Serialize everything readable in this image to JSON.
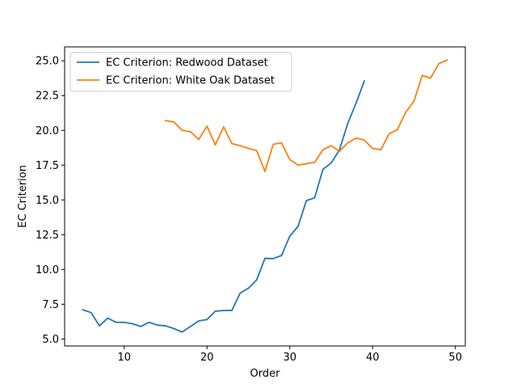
{
  "chart_data": {
    "type": "line",
    "title": "",
    "xlabel": "Order",
    "ylabel": "EC Criterion",
    "xlim": [
      2.8,
      51.2
    ],
    "ylim": [
      4.5,
      26.0
    ],
    "xticks": [
      10,
      20,
      30,
      40,
      50
    ],
    "yticks": [
      5.0,
      7.5,
      10.0,
      12.5,
      15.0,
      17.5,
      20.0,
      22.5,
      25.0
    ],
    "grid": false,
    "legend_position": "upper-left",
    "series": [
      {
        "name": "EC Criterion: Redwood Dataset",
        "color": "#1f77b4",
        "x": [
          5,
          6,
          7,
          8,
          9,
          10,
          11,
          12,
          13,
          14,
          15,
          16,
          17,
          18,
          19,
          20,
          21,
          22,
          23,
          24,
          25,
          26,
          27,
          28,
          29,
          30,
          31,
          32,
          33,
          34,
          35,
          36,
          37,
          38,
          39
        ],
        "y": [
          7.1,
          6.9,
          5.95,
          6.5,
          6.2,
          6.2,
          6.1,
          5.9,
          6.2,
          6.0,
          5.95,
          5.75,
          5.5,
          5.9,
          6.3,
          6.4,
          7.0,
          7.05,
          7.05,
          8.3,
          8.65,
          9.25,
          10.8,
          10.78,
          11.0,
          12.4,
          13.1,
          14.95,
          15.15,
          17.2,
          17.65,
          18.6,
          20.5,
          21.95,
          23.55
        ]
      },
      {
        "name": "EC Criterion: White Oak Dataset",
        "color": "#ff7f0e",
        "x": [
          15,
          16,
          17,
          18,
          19,
          20,
          21,
          22,
          23,
          24,
          25,
          26,
          27,
          28,
          29,
          30,
          31,
          32,
          33,
          34,
          35,
          36,
          37,
          38,
          39,
          40,
          41,
          42,
          43,
          44,
          45,
          46,
          47,
          48,
          49
        ],
        "y": [
          20.7,
          20.6,
          20.0,
          19.9,
          19.35,
          20.3,
          18.95,
          20.25,
          19.05,
          18.9,
          18.7,
          18.55,
          17.05,
          19.0,
          19.1,
          17.9,
          17.5,
          17.6,
          17.7,
          18.6,
          18.9,
          18.5,
          19.1,
          19.45,
          19.3,
          18.7,
          18.6,
          19.75,
          20.05,
          21.3,
          22.1,
          23.95,
          23.75,
          24.8,
          25.05
        ]
      }
    ]
  }
}
